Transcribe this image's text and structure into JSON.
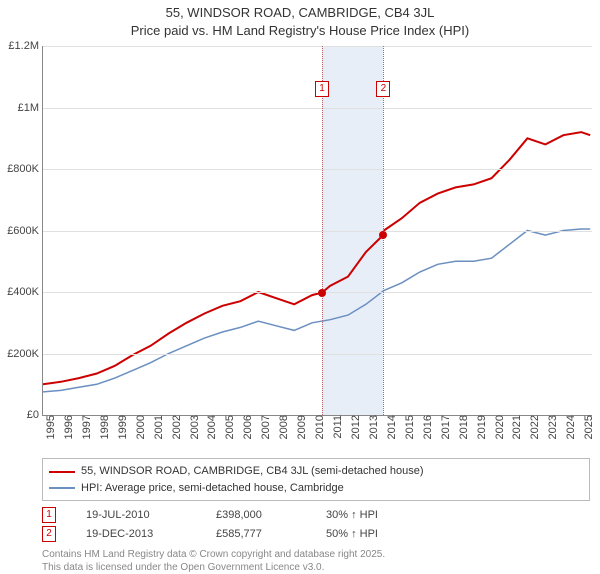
{
  "title_line1": "55, WINDSOR ROAD, CAMBRIDGE, CB4 3JL",
  "title_line2": "Price paid vs. HM Land Registry's House Price Index (HPI)",
  "chart": {
    "type": "line",
    "ylim": [
      0,
      1200000
    ],
    "ytick_step": 200000,
    "yticks": [
      "£0",
      "£200K",
      "£400K",
      "£600K",
      "£800K",
      "£1M",
      "£1.2M"
    ],
    "xlim": [
      1995,
      2025.6
    ],
    "xticks": [
      1995,
      1996,
      1997,
      1998,
      1999,
      2000,
      2001,
      2002,
      2003,
      2004,
      2005,
      2006,
      2007,
      2008,
      2009,
      2010,
      2011,
      2012,
      2013,
      2014,
      2015,
      2016,
      2017,
      2018,
      2019,
      2020,
      2021,
      2022,
      2023,
      2024,
      2025
    ],
    "band": {
      "start": 2010.55,
      "end": 2013.97,
      "fill": "#e8eef8",
      "edge": "#c06060"
    },
    "grid_color": "#e0e0e0",
    "background_color": "#ffffff",
    "series": [
      {
        "name": "property",
        "color": "#cc0000",
        "width": 2,
        "points": [
          [
            1995,
            100000
          ],
          [
            1996,
            108000
          ],
          [
            1997,
            120000
          ],
          [
            1998,
            135000
          ],
          [
            1999,
            160000
          ],
          [
            2000,
            195000
          ],
          [
            2001,
            225000
          ],
          [
            2002,
            265000
          ],
          [
            2003,
            300000
          ],
          [
            2004,
            330000
          ],
          [
            2005,
            355000
          ],
          [
            2006,
            370000
          ],
          [
            2007,
            400000
          ],
          [
            2008,
            380000
          ],
          [
            2009,
            360000
          ],
          [
            2010,
            390000
          ],
          [
            2010.55,
            398000
          ],
          [
            2011,
            420000
          ],
          [
            2012,
            450000
          ],
          [
            2013,
            530000
          ],
          [
            2013.97,
            585777
          ],
          [
            2014,
            600000
          ],
          [
            2015,
            640000
          ],
          [
            2016,
            690000
          ],
          [
            2017,
            720000
          ],
          [
            2018,
            740000
          ],
          [
            2019,
            750000
          ],
          [
            2020,
            770000
          ],
          [
            2021,
            830000
          ],
          [
            2022,
            900000
          ],
          [
            2023,
            880000
          ],
          [
            2024,
            910000
          ],
          [
            2025,
            920000
          ],
          [
            2025.5,
            910000
          ]
        ]
      },
      {
        "name": "hpi",
        "color": "#6a8fc0",
        "width": 1.5,
        "points": [
          [
            1995,
            75000
          ],
          [
            1996,
            80000
          ],
          [
            1997,
            90000
          ],
          [
            1998,
            100000
          ],
          [
            1999,
            120000
          ],
          [
            2000,
            145000
          ],
          [
            2001,
            170000
          ],
          [
            2002,
            200000
          ],
          [
            2003,
            225000
          ],
          [
            2004,
            250000
          ],
          [
            2005,
            270000
          ],
          [
            2006,
            285000
          ],
          [
            2007,
            305000
          ],
          [
            2008,
            290000
          ],
          [
            2009,
            275000
          ],
          [
            2010,
            300000
          ],
          [
            2011,
            310000
          ],
          [
            2012,
            325000
          ],
          [
            2013,
            360000
          ],
          [
            2014,
            405000
          ],
          [
            2015,
            430000
          ],
          [
            2016,
            465000
          ],
          [
            2017,
            490000
          ],
          [
            2018,
            500000
          ],
          [
            2019,
            500000
          ],
          [
            2020,
            510000
          ],
          [
            2021,
            555000
          ],
          [
            2022,
            600000
          ],
          [
            2023,
            585000
          ],
          [
            2024,
            600000
          ],
          [
            2025,
            605000
          ],
          [
            2025.5,
            605000
          ]
        ]
      }
    ],
    "markers": [
      {
        "id": "1",
        "x": 2010.55,
        "label_y": 1060000,
        "dot_y": 398000,
        "color": "#cc0000"
      },
      {
        "id": "2",
        "x": 2013.97,
        "label_y": 1060000,
        "dot_y": 585777,
        "color": "#cc0000"
      }
    ]
  },
  "legend": {
    "items": [
      {
        "color": "#cc0000",
        "label": "55, WINDSOR ROAD, CAMBRIDGE, CB4 3JL (semi-detached house)"
      },
      {
        "color": "#6a8fc0",
        "label": "HPI: Average price, semi-detached house, Cambridge"
      }
    ]
  },
  "sales": [
    {
      "id": "1",
      "date": "19-JUL-2010",
      "price": "£398,000",
      "delta": "30% ↑ HPI",
      "color": "#cc0000"
    },
    {
      "id": "2",
      "date": "19-DEC-2013",
      "price": "£585,777",
      "delta": "50% ↑ HPI",
      "color": "#cc0000"
    }
  ],
  "footer_line1": "Contains HM Land Registry data © Crown copyright and database right 2025.",
  "footer_line2": "This data is licensed under the Open Government Licence v3.0."
}
